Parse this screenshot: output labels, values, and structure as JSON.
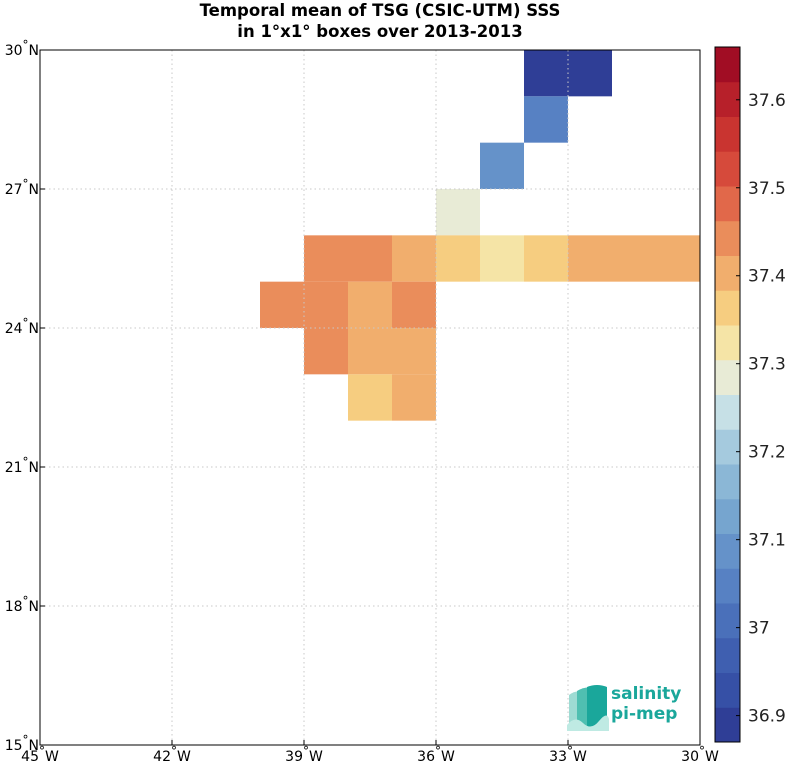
{
  "title": {
    "line1": "Temporal mean of TSG (CSIC-UTM) SSS",
    "line2": "in 1°x1° boxes over 2013-2013"
  },
  "map": {
    "lon_range": [
      -45,
      -30
    ],
    "lat_range": [
      15,
      30
    ],
    "grid": "dotted",
    "lon_ticks": [
      {
        "value": -45,
        "label": "45°W"
      },
      {
        "value": -42,
        "label": "42°W"
      },
      {
        "value": -39,
        "label": "39°W"
      },
      {
        "value": -36,
        "label": "36°W"
      },
      {
        "value": -33,
        "label": "33°W"
      },
      {
        "value": -30,
        "label": "30°W"
      }
    ],
    "lat_ticks": [
      {
        "value": 15,
        "label": "15°N"
      },
      {
        "value": 18,
        "label": "18°N"
      },
      {
        "value": 21,
        "label": "21°N"
      },
      {
        "value": 24,
        "label": "24°N"
      },
      {
        "value": 27,
        "label": "27°N"
      },
      {
        "value": 30,
        "label": "30°N"
      }
    ],
    "cells": [
      {
        "lon": -34,
        "lat": 29,
        "sss": 36.9
      },
      {
        "lon": -33,
        "lat": 29,
        "sss": 36.9
      },
      {
        "lon": -34,
        "lat": 28,
        "sss": 37.03
      },
      {
        "lon": -35,
        "lat": 27,
        "sss": 37.08
      },
      {
        "lon": -36,
        "lat": 26,
        "sss": 37.28
      },
      {
        "lon": -39,
        "lat": 25,
        "sss": 37.44
      },
      {
        "lon": -38,
        "lat": 25,
        "sss": 37.44
      },
      {
        "lon": -37,
        "lat": 25,
        "sss": 37.41
      },
      {
        "lon": -36,
        "lat": 25,
        "sss": 37.37
      },
      {
        "lon": -35,
        "lat": 25,
        "sss": 37.32
      },
      {
        "lon": -34,
        "lat": 25,
        "sss": 37.37
      },
      {
        "lon": -33,
        "lat": 25,
        "sss": 37.41
      },
      {
        "lon": -32,
        "lat": 25,
        "sss": 37.41
      },
      {
        "lon": -31,
        "lat": 25,
        "sss": 37.41
      },
      {
        "lon": -40,
        "lat": 24,
        "sss": 37.44
      },
      {
        "lon": -39,
        "lat": 24,
        "sss": 37.44
      },
      {
        "lon": -38,
        "lat": 24,
        "sss": 37.41
      },
      {
        "lon": -37,
        "lat": 24,
        "sss": 37.46
      },
      {
        "lon": -39,
        "lat": 23,
        "sss": 37.44
      },
      {
        "lon": -38,
        "lat": 23,
        "sss": 37.41
      },
      {
        "lon": -37,
        "lat": 23,
        "sss": 37.41
      },
      {
        "lon": -38,
        "lat": 22,
        "sss": 37.37
      },
      {
        "lon": -37,
        "lat": 22,
        "sss": 37.41
      }
    ]
  },
  "colorbar": {
    "min": 36.87,
    "max": 37.66,
    "steps": 20,
    "colors": [
      "#2f3e96",
      "#3650a6",
      "#3f5fb0",
      "#4a70ba",
      "#5781c3",
      "#6592c9",
      "#76a5cf",
      "#8bb7d6",
      "#a5cade",
      "#c6e0e6",
      "#e8ebd6",
      "#f5e4a6",
      "#f6cd80",
      "#f1ae6d",
      "#ea8d5b",
      "#e1684a",
      "#d64a3b",
      "#c93430",
      "#b7202a",
      "#a10d24"
    ],
    "ticks": [
      {
        "value": 36.9,
        "label": "36.9"
      },
      {
        "value": 37.0,
        "label": "37"
      },
      {
        "value": 37.1,
        "label": "37.1"
      },
      {
        "value": 37.2,
        "label": "37.2"
      },
      {
        "value": 37.3,
        "label": "37.3"
      },
      {
        "value": 37.4,
        "label": "37.4"
      },
      {
        "value": 37.5,
        "label": "37.5"
      },
      {
        "value": 37.6,
        "label": "37.6"
      }
    ]
  },
  "logo": {
    "word1": "salinity",
    "word2": "pi-mep",
    "color": "#1aa79b"
  }
}
